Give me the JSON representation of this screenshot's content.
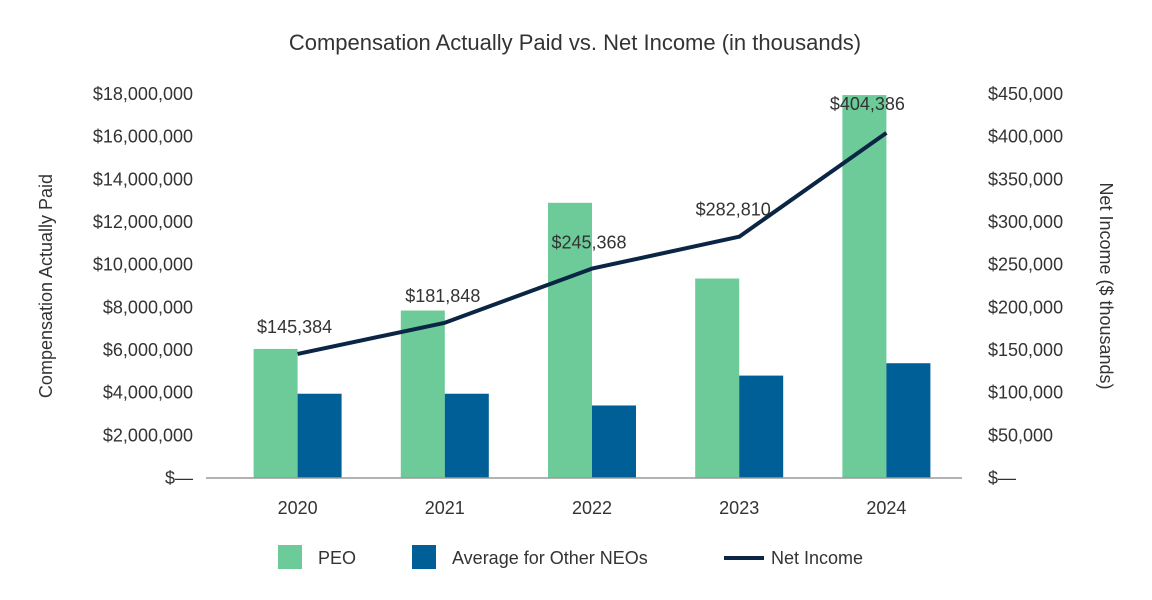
{
  "chart_data": {
    "type": "bar",
    "title": "Compensation Actually Paid vs. Net Income (in thousands)",
    "categories": [
      "2020",
      "2021",
      "2022",
      "2023",
      "2024"
    ],
    "ylabel": "Compensation Actually Paid",
    "y2label": "Net Income ($ thousands)",
    "ylim": [
      0,
      18000000
    ],
    "y2lim": [
      0,
      450000
    ],
    "yticks": [
      "$—",
      "$2,000,000",
      "$4,000,000",
      "$6,000,000",
      "$8,000,000",
      "$10,000,000",
      "$12,000,000",
      "$14,000,000",
      "$16,000,000",
      "$18,000,000"
    ],
    "y2ticks": [
      "$—",
      "$50,000",
      "$100,000",
      "$150,000",
      "$200,000",
      "$250,000",
      "$300,000",
      "$350,000",
      "$400,000",
      "$450,000"
    ],
    "grid": false,
    "legend_position": "bottom",
    "series": [
      {
        "name": "PEO",
        "type": "bar",
        "axis": "left",
        "color": "#6ccb98",
        "values": [
          6050000,
          7850000,
          12900000,
          9350000,
          17950000
        ]
      },
      {
        "name": "Average for Other NEOs",
        "type": "bar",
        "axis": "left",
        "color": "#005f96",
        "values": [
          3950000,
          3950000,
          3400000,
          4800000,
          5380000
        ]
      },
      {
        "name": "Net Income",
        "type": "line",
        "axis": "right",
        "color": "#0b2545",
        "values": [
          145384,
          181848,
          245368,
          282810,
          404386
        ],
        "labels": [
          "$145,384",
          "$181,848",
          "$245,368",
          "$282,810",
          "$404,386"
        ]
      }
    ]
  }
}
